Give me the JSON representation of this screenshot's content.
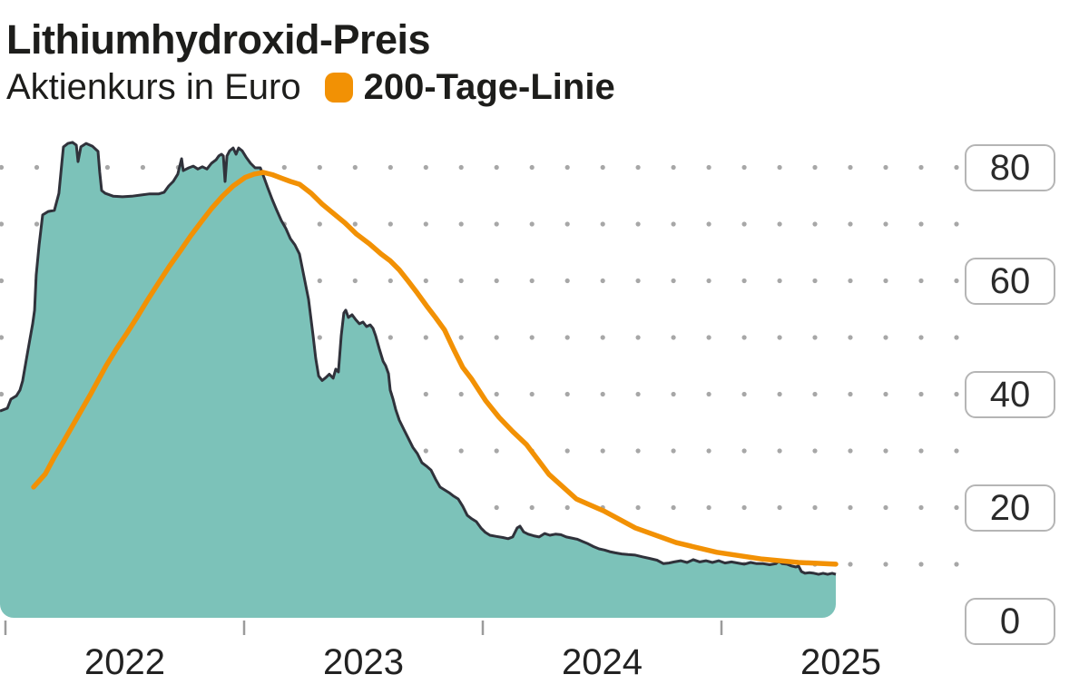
{
  "header": {
    "title": "Lithiumhydroxid-Preis",
    "subtitle": "Aktienkurs in Euro",
    "legend": {
      "label": "200-Tage-Linie",
      "swatch_color": "#F29104"
    }
  },
  "chart_data": {
    "type": "area",
    "title": "Lithiumhydroxid-Preis",
    "ylabel": "Aktienkurs in Euro",
    "x_tick_labels": [
      "2022",
      "2023",
      "2024",
      "2025"
    ],
    "x_ticks": [
      2022,
      2023,
      2024,
      2025
    ],
    "y_ticks": [
      0,
      20,
      40,
      60,
      80
    ],
    "x_domain": [
      2021.977,
      2026.02
    ],
    "ylim": [
      0,
      87
    ],
    "grid": "dotted",
    "legend_position": "top-left",
    "colors": {
      "area_fill": "#7CC2B9",
      "price_outline": "#30323B",
      "ma_line": "#F29104",
      "grid_dot": "#A7A7A7",
      "tick": "#9B9B9B",
      "label_box_border": "#B5B5B5"
    },
    "series": [
      {
        "name": "Aktienkurs",
        "type": "area",
        "color": "#7CC2B9",
        "points": [
          [
            2021.977,
            37.1
          ],
          [
            2022.008,
            37.6
          ],
          [
            2022.023,
            39.2
          ],
          [
            2022.046,
            39.8
          ],
          [
            2022.061,
            40.8
          ],
          [
            2022.072,
            42.4
          ],
          [
            2022.091,
            47.0
          ],
          [
            2022.103,
            49.9
          ],
          [
            2022.114,
            52.5
          ],
          [
            2022.122,
            54.9
          ],
          [
            2022.129,
            61.1
          ],
          [
            2022.141,
            66.4
          ],
          [
            2022.156,
            71.7
          ],
          [
            2022.179,
            72.3
          ],
          [
            2022.205,
            72.5
          ],
          [
            2022.224,
            75.5
          ],
          [
            2022.236,
            80.8
          ],
          [
            2022.243,
            83.7
          ],
          [
            2022.262,
            84.3
          ],
          [
            2022.281,
            84.5
          ],
          [
            2022.297,
            84.0
          ],
          [
            2022.304,
            81.1
          ],
          [
            2022.316,
            83.7
          ],
          [
            2022.338,
            84.3
          ],
          [
            2022.365,
            83.8
          ],
          [
            2022.388,
            82.9
          ],
          [
            2022.395,
            79.2
          ],
          [
            2022.403,
            76.0
          ],
          [
            2022.418,
            75.5
          ],
          [
            2022.452,
            75.0
          ],
          [
            2022.49,
            74.9
          ],
          [
            2022.529,
            75.0
          ],
          [
            2022.567,
            75.2
          ],
          [
            2022.605,
            75.4
          ],
          [
            2022.643,
            75.4
          ],
          [
            2022.665,
            75.7
          ],
          [
            2022.684,
            76.8
          ],
          [
            2022.703,
            77.6
          ],
          [
            2022.722,
            78.9
          ],
          [
            2022.738,
            81.6
          ],
          [
            2022.745,
            79.5
          ],
          [
            2022.768,
            80.0
          ],
          [
            2022.787,
            80.3
          ],
          [
            2022.806,
            79.8
          ],
          [
            2022.825,
            80.2
          ],
          [
            2022.844,
            79.8
          ],
          [
            2022.863,
            80.8
          ],
          [
            2022.882,
            81.4
          ],
          [
            2022.894,
            82.1
          ],
          [
            2022.905,
            82.4
          ],
          [
            2022.913,
            82.1
          ],
          [
            2022.92,
            77.6
          ],
          [
            2022.928,
            82.1
          ],
          [
            2022.939,
            83.0
          ],
          [
            2022.954,
            83.5
          ],
          [
            2022.966,
            82.4
          ],
          [
            2022.977,
            83.5
          ],
          [
            2022.992,
            83.0
          ],
          [
            2023.008,
            81.9
          ],
          [
            2023.027,
            80.8
          ],
          [
            2023.046,
            80.0
          ],
          [
            2023.068,
            80.0
          ],
          [
            2023.08,
            78.7
          ],
          [
            2023.099,
            76.5
          ],
          [
            2023.118,
            74.4
          ],
          [
            2023.137,
            72.5
          ],
          [
            2023.156,
            70.7
          ],
          [
            2023.175,
            69.3
          ],
          [
            2023.194,
            67.5
          ],
          [
            2023.213,
            66.4
          ],
          [
            2023.232,
            64.8
          ],
          [
            2023.251,
            60.8
          ],
          [
            2023.27,
            56.8
          ],
          [
            2023.289,
            50.4
          ],
          [
            2023.3,
            46.4
          ],
          [
            2023.312,
            43.3
          ],
          [
            2023.327,
            42.5
          ],
          [
            2023.342,
            43.0
          ],
          [
            2023.357,
            43.6
          ],
          [
            2023.373,
            42.9
          ],
          [
            2023.384,
            44.5
          ],
          [
            2023.395,
            44.0
          ],
          [
            2023.407,
            50.4
          ],
          [
            2023.418,
            54.4
          ],
          [
            2023.426,
            54.9
          ],
          [
            2023.437,
            53.6
          ],
          [
            2023.452,
            54.1
          ],
          [
            2023.468,
            53.2
          ],
          [
            2023.483,
            52.5
          ],
          [
            2023.498,
            52.8
          ],
          [
            2023.513,
            52.0
          ],
          [
            2023.528,
            52.3
          ],
          [
            2023.54,
            51.7
          ],
          [
            2023.551,
            50.4
          ],
          [
            2023.567,
            48.0
          ],
          [
            2023.582,
            45.9
          ],
          [
            2023.593,
            45.1
          ],
          [
            2023.605,
            43.7
          ],
          [
            2023.612,
            40.8
          ],
          [
            2023.624,
            39.2
          ],
          [
            2023.635,
            37.4
          ],
          [
            2023.65,
            35.5
          ],
          [
            2023.669,
            33.9
          ],
          [
            2023.688,
            32.3
          ],
          [
            2023.707,
            30.7
          ],
          [
            2023.726,
            29.6
          ],
          [
            2023.745,
            28.0
          ],
          [
            2023.764,
            27.4
          ],
          [
            2023.783,
            26.7
          ],
          [
            2023.802,
            25.1
          ],
          [
            2023.821,
            23.7
          ],
          [
            2023.84,
            23.2
          ],
          [
            2023.859,
            22.7
          ],
          [
            2023.878,
            22.1
          ],
          [
            2023.897,
            21.6
          ],
          [
            2023.916,
            20.3
          ],
          [
            2023.935,
            18.7
          ],
          [
            2023.954,
            18.1
          ],
          [
            2023.973,
            17.6
          ],
          [
            2023.992,
            16.5
          ],
          [
            2024.011,
            15.7
          ],
          [
            2024.03,
            15.2
          ],
          [
            2024.057,
            15.0
          ],
          [
            2024.084,
            14.8
          ],
          [
            2024.106,
            14.6
          ],
          [
            2024.125,
            14.9
          ],
          [
            2024.144,
            16.5
          ],
          [
            2024.156,
            16.8
          ],
          [
            2024.171,
            15.8
          ],
          [
            2024.19,
            15.4
          ],
          [
            2024.213,
            15.1
          ],
          [
            2024.236,
            14.9
          ],
          [
            2024.259,
            15.5
          ],
          [
            2024.281,
            15.2
          ],
          [
            2024.304,
            15.4
          ],
          [
            2024.327,
            15.3
          ],
          [
            2024.35,
            14.9
          ],
          [
            2024.373,
            14.7
          ],
          [
            2024.396,
            14.5
          ],
          [
            2024.418,
            14.1
          ],
          [
            2024.441,
            13.7
          ],
          [
            2024.464,
            13.2
          ],
          [
            2024.487,
            12.8
          ],
          [
            2024.51,
            12.6
          ],
          [
            2024.532,
            12.3
          ],
          [
            2024.555,
            12.1
          ],
          [
            2024.582,
            11.9
          ],
          [
            2024.608,
            11.8
          ],
          [
            2024.639,
            11.7
          ],
          [
            2024.669,
            11.4
          ],
          [
            2024.7,
            11.1
          ],
          [
            2024.73,
            10.8
          ],
          [
            2024.757,
            10.2
          ],
          [
            2024.78,
            10.3
          ],
          [
            2024.802,
            10.5
          ],
          [
            2024.829,
            10.7
          ],
          [
            2024.856,
            10.4
          ],
          [
            2024.882,
            10.9
          ],
          [
            2024.909,
            10.5
          ],
          [
            2024.935,
            10.7
          ],
          [
            2024.962,
            10.4
          ],
          [
            2024.989,
            10.7
          ],
          [
            2025.015,
            10.3
          ],
          [
            2025.042,
            10.5
          ],
          [
            2025.068,
            10.3
          ],
          [
            2025.095,
            10.1
          ],
          [
            2025.122,
            10.4
          ],
          [
            2025.148,
            10.2
          ],
          [
            2025.175,
            10.2
          ],
          [
            2025.202,
            10.0
          ],
          [
            2025.228,
            10.2
          ],
          [
            2025.24,
            10.6
          ],
          [
            2025.255,
            10.2
          ],
          [
            2025.274,
            10.1
          ],
          [
            2025.293,
            9.8
          ],
          [
            2025.312,
            9.6
          ],
          [
            2025.323,
            9.8
          ],
          [
            2025.335,
            8.8
          ],
          [
            2025.35,
            8.5
          ],
          [
            2025.369,
            8.6
          ],
          [
            2025.388,
            8.5
          ],
          [
            2025.407,
            8.3
          ],
          [
            2025.426,
            8.5
          ],
          [
            2025.445,
            8.3
          ],
          [
            2025.464,
            8.5
          ],
          [
            2025.479,
            8.3
          ]
        ]
      },
      {
        "name": "200-Tage-Linie",
        "type": "line",
        "color": "#F29104",
        "points": [
          [
            2022.118,
            23.7
          ],
          [
            2022.167,
            26.0
          ],
          [
            2022.205,
            29.0
          ],
          [
            2022.243,
            31.7
          ],
          [
            2022.281,
            34.5
          ],
          [
            2022.319,
            37.3
          ],
          [
            2022.357,
            40.1
          ],
          [
            2022.422,
            45.1
          ],
          [
            2022.464,
            48.0
          ],
          [
            2022.51,
            50.9
          ],
          [
            2022.555,
            53.9
          ],
          [
            2022.597,
            56.8
          ],
          [
            2022.643,
            59.8
          ],
          [
            2022.688,
            62.7
          ],
          [
            2022.734,
            65.4
          ],
          [
            2022.776,
            68.0
          ],
          [
            2022.821,
            70.5
          ],
          [
            2022.863,
            72.8
          ],
          [
            2022.909,
            75.0
          ],
          [
            2022.954,
            76.8
          ],
          [
            2023.004,
            78.3
          ],
          [
            2023.042,
            78.9
          ],
          [
            2023.08,
            79.2
          ],
          [
            2023.118,
            78.8
          ],
          [
            2023.156,
            78.2
          ],
          [
            2023.194,
            77.6
          ],
          [
            2023.232,
            77.1
          ],
          [
            2023.281,
            75.5
          ],
          [
            2023.327,
            73.6
          ],
          [
            2023.373,
            72.0
          ],
          [
            2023.422,
            70.3
          ],
          [
            2023.471,
            68.3
          ],
          [
            2023.525,
            66.6
          ],
          [
            2023.574,
            64.8
          ],
          [
            2023.612,
            63.6
          ],
          [
            2023.65,
            62.0
          ],
          [
            2023.688,
            60.0
          ],
          [
            2023.726,
            57.9
          ],
          [
            2023.764,
            55.7
          ],
          [
            2023.802,
            53.6
          ],
          [
            2023.84,
            51.4
          ],
          [
            2023.878,
            48.0
          ],
          [
            2023.916,
            44.8
          ],
          [
            2023.954,
            42.7
          ],
          [
            2024.011,
            39.0
          ],
          [
            2024.068,
            36.0
          ],
          [
            2024.125,
            33.5
          ],
          [
            2024.183,
            31.2
          ],
          [
            2024.278,
            25.9
          ],
          [
            2024.392,
            21.6
          ],
          [
            2024.506,
            19.5
          ],
          [
            2024.639,
            16.5
          ],
          [
            2024.81,
            13.9
          ],
          [
            2024.981,
            12.2
          ],
          [
            2025.171,
            11.0
          ],
          [
            2025.323,
            10.4
          ],
          [
            2025.479,
            10.1
          ]
        ]
      }
    ]
  }
}
